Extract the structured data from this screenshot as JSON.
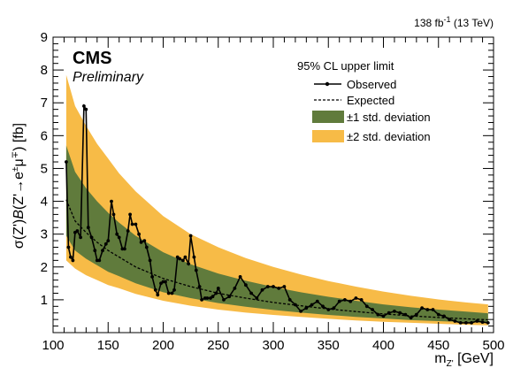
{
  "chart_data": {
    "type": "line",
    "header": {
      "lumi_value": "138 fb",
      "lumi_exp": "-1",
      "lumi_rest": " (13 TeV)",
      "experiment": "CMS",
      "status": "Preliminary"
    },
    "xaxis": {
      "label_main": "m",
      "label_sub": "Z'",
      "label_unit": " [GeV]",
      "range": [
        100,
        500
      ],
      "major_ticks": [
        100,
        150,
        200,
        250,
        300,
        350,
        400,
        450,
        500
      ]
    },
    "yaxis": {
      "label_a": "σ(Z')",
      "label_b": "B",
      "label_c": "(Z'→e",
      "label_sup1": "±",
      "label_d": "μ",
      "label_sup2": "∓",
      "label_e": ") [fb]",
      "range": [
        0,
        9
      ],
      "major_ticks": [
        1,
        2,
        3,
        4,
        5,
        6,
        7,
        8,
        9
      ]
    },
    "legend": {
      "header": "95% CL upper limit",
      "entries": [
        {
          "key": "observed",
          "label": "Observed"
        },
        {
          "key": "expected",
          "label": "Expected"
        },
        {
          "key": "band1",
          "label": "±1 std. deviation"
        },
        {
          "key": "band2",
          "label": "±2 std. deviation"
        }
      ]
    },
    "colors": {
      "band1": "#607b3c",
      "band2": "#f7bb47",
      "line": "#000000"
    },
    "expected_bands": {
      "x": [
        112,
        120,
        130,
        140,
        150,
        160,
        175,
        200,
        225,
        250,
        275,
        300,
        325,
        350,
        375,
        400,
        425,
        450,
        475,
        495
      ],
      "expected": [
        4.05,
        3.4,
        3.05,
        2.75,
        2.5,
        2.3,
        2.0,
        1.65,
        1.4,
        1.2,
        1.05,
        0.92,
        0.82,
        0.72,
        0.64,
        0.57,
        0.51,
        0.46,
        0.42,
        0.39
      ],
      "minus2": [
        2.2,
        1.95,
        1.75,
        1.6,
        1.45,
        1.35,
        1.18,
        0.97,
        0.82,
        0.7,
        0.61,
        0.54,
        0.48,
        0.42,
        0.37,
        0.33,
        0.3,
        0.27,
        0.24,
        0.22
      ],
      "minus1": [
        2.95,
        2.5,
        2.25,
        2.05,
        1.85,
        1.72,
        1.5,
        1.23,
        1.05,
        0.9,
        0.79,
        0.69,
        0.61,
        0.54,
        0.48,
        0.43,
        0.38,
        0.35,
        0.32,
        0.3
      ],
      "plus1": [
        5.7,
        4.9,
        4.4,
        4.0,
        3.65,
        3.35,
        2.95,
        2.45,
        2.08,
        1.8,
        1.58,
        1.39,
        1.23,
        1.09,
        0.97,
        0.86,
        0.77,
        0.7,
        0.64,
        0.59
      ],
      "plus2": [
        7.85,
        6.9,
        6.3,
        5.75,
        5.3,
        4.85,
        4.3,
        3.55,
        3.0,
        2.6,
        2.27,
        2.0,
        1.77,
        1.57,
        1.4,
        1.25,
        1.12,
        1.01,
        0.92,
        0.86
      ]
    },
    "observed": {
      "x": [
        112,
        114,
        116,
        118,
        120,
        122,
        125,
        128,
        130,
        132,
        135,
        138,
        140,
        142,
        145,
        148,
        150,
        153,
        155,
        158,
        160,
        163,
        165,
        168,
        170,
        172,
        175,
        178,
        180,
        183,
        185,
        188,
        190,
        193,
        195,
        198,
        200,
        202,
        205,
        208,
        210,
        213,
        215,
        218,
        220,
        223,
        225,
        228,
        230,
        233,
        235,
        238,
        240,
        243,
        245,
        248,
        250,
        255,
        260,
        265,
        270,
        275,
        280,
        285,
        290,
        295,
        300,
        305,
        310,
        315,
        320,
        325,
        330,
        335,
        340,
        345,
        350,
        355,
        360,
        365,
        370,
        375,
        380,
        385,
        390,
        395,
        400,
        405,
        410,
        415,
        420,
        425,
        430,
        435,
        440,
        445,
        450,
        455,
        460,
        465,
        470,
        475,
        480,
        485,
        490,
        495
      ],
      "y": [
        5.2,
        2.6,
        2.3,
        2.2,
        3.05,
        3.1,
        2.9,
        6.9,
        6.8,
        3.2,
        2.9,
        2.5,
        2.2,
        2.2,
        2.5,
        2.7,
        2.8,
        4.0,
        3.6,
        3.0,
        2.9,
        2.55,
        2.55,
        3.1,
        3.6,
        3.3,
        3.3,
        3.0,
        2.75,
        2.8,
        2.6,
        2.2,
        1.7,
        1.3,
        1.15,
        1.5,
        1.55,
        1.55,
        1.2,
        1.2,
        1.3,
        2.3,
        2.25,
        2.2,
        2.3,
        2.1,
        2.95,
        2.3,
        1.9,
        1.4,
        1.0,
        1.05,
        1.05,
        1.05,
        1.1,
        1.2,
        1.35,
        1.0,
        1.1,
        1.35,
        1.7,
        1.45,
        1.2,
        1.05,
        1.3,
        1.4,
        1.4,
        1.35,
        1.4,
        1.0,
        0.85,
        0.65,
        0.75,
        0.85,
        0.95,
        0.8,
        0.7,
        0.75,
        0.95,
        1.0,
        0.95,
        1.05,
        1.0,
        0.8,
        0.7,
        0.55,
        0.5,
        0.6,
        0.65,
        0.6,
        0.55,
        0.45,
        0.55,
        0.75,
        0.7,
        0.7,
        0.55,
        0.5,
        0.4,
        0.35,
        0.3,
        0.3,
        0.3,
        0.35,
        0.32,
        0.3
      ]
    }
  }
}
